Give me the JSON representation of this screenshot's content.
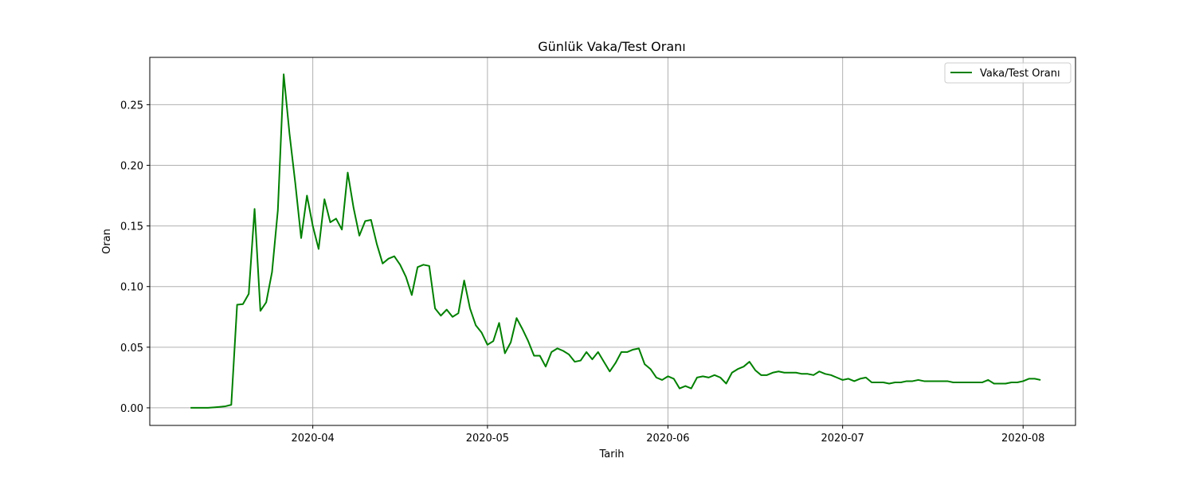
{
  "chart_data": {
    "type": "line",
    "title": "Günlük Vaka/Test Oranı",
    "xlabel": "Tarih",
    "ylabel": "Oran",
    "legend_position": "top-right",
    "grid": true,
    "ylim": [
      -0.0145,
      0.289
    ],
    "xlim": [
      "2020-03-04",
      "2020-08-10"
    ],
    "x_ticks": [
      "2020-04-01",
      "2020-05-01",
      "2020-06-01",
      "2020-07-01",
      "2020-08-01"
    ],
    "x_tick_labels": [
      "2020-04",
      "2020-05",
      "2020-06",
      "2020-07",
      "2020-08"
    ],
    "y_ticks": [
      0,
      0.05,
      0.1,
      0.15,
      0.2,
      0.25
    ],
    "y_tick_labels": [
      "0.00",
      "0.05",
      "0.10",
      "0.15",
      "0.20",
      "0.25"
    ],
    "series": [
      {
        "name": "Vaka/Test Oranı",
        "color": "#008000",
        "x": [
          "2020-03-11",
          "2020-03-12",
          "2020-03-13",
          "2020-03-14",
          "2020-03-15",
          "2020-03-16",
          "2020-03-17",
          "2020-03-18",
          "2020-03-19",
          "2020-03-20",
          "2020-03-21",
          "2020-03-22",
          "2020-03-23",
          "2020-03-24",
          "2020-03-25",
          "2020-03-26",
          "2020-03-27",
          "2020-03-28",
          "2020-03-29",
          "2020-03-30",
          "2020-03-31",
          "2020-04-01",
          "2020-04-02",
          "2020-04-03",
          "2020-04-04",
          "2020-04-05",
          "2020-04-06",
          "2020-04-07",
          "2020-04-08",
          "2020-04-09",
          "2020-04-10",
          "2020-04-11",
          "2020-04-12",
          "2020-04-13",
          "2020-04-14",
          "2020-04-15",
          "2020-04-16",
          "2020-04-17",
          "2020-04-18",
          "2020-04-19",
          "2020-04-20",
          "2020-04-21",
          "2020-04-22",
          "2020-04-23",
          "2020-04-24",
          "2020-04-25",
          "2020-04-26",
          "2020-04-27",
          "2020-04-28",
          "2020-04-29",
          "2020-04-30",
          "2020-05-01",
          "2020-05-02",
          "2020-05-03",
          "2020-05-04",
          "2020-05-05",
          "2020-05-06",
          "2020-05-07",
          "2020-05-08",
          "2020-05-09",
          "2020-05-10",
          "2020-05-11",
          "2020-05-12",
          "2020-05-13",
          "2020-05-14",
          "2020-05-15",
          "2020-05-16",
          "2020-05-17",
          "2020-05-18",
          "2020-05-19",
          "2020-05-20",
          "2020-05-21",
          "2020-05-22",
          "2020-05-23",
          "2020-05-24",
          "2020-05-25",
          "2020-05-26",
          "2020-05-27",
          "2020-05-28",
          "2020-05-29",
          "2020-05-30",
          "2020-05-31",
          "2020-06-01",
          "2020-06-02",
          "2020-06-03",
          "2020-06-04",
          "2020-06-05",
          "2020-06-06",
          "2020-06-07",
          "2020-06-08",
          "2020-06-09",
          "2020-06-10",
          "2020-06-11",
          "2020-06-12",
          "2020-06-13",
          "2020-06-14",
          "2020-06-15",
          "2020-06-16",
          "2020-06-17",
          "2020-06-18",
          "2020-06-19",
          "2020-06-20",
          "2020-06-21",
          "2020-06-22",
          "2020-06-23",
          "2020-06-24",
          "2020-06-25",
          "2020-06-26",
          "2020-06-27",
          "2020-06-28",
          "2020-06-29",
          "2020-06-30",
          "2020-07-01",
          "2020-07-02",
          "2020-07-03",
          "2020-07-04",
          "2020-07-05",
          "2020-07-06",
          "2020-07-07",
          "2020-07-08",
          "2020-07-09",
          "2020-07-10",
          "2020-07-11",
          "2020-07-12",
          "2020-07-13",
          "2020-07-14",
          "2020-07-15",
          "2020-07-16",
          "2020-07-17",
          "2020-07-18",
          "2020-07-19",
          "2020-07-20",
          "2020-07-21",
          "2020-07-22",
          "2020-07-23",
          "2020-07-24",
          "2020-07-25",
          "2020-07-26",
          "2020-07-27",
          "2020-07-28",
          "2020-07-29",
          "2020-07-30",
          "2020-07-31",
          "2020-08-01",
          "2020-08-02",
          "2020-08-03",
          "2020-08-04"
        ],
        "y": [
          0.0,
          0.0,
          0.0,
          0.0,
          0.0004,
          0.0008,
          0.0013,
          0.0025,
          0.085,
          0.0855,
          0.094,
          0.164,
          0.08,
          0.087,
          0.112,
          0.163,
          0.275,
          0.226,
          0.185,
          0.14,
          0.175,
          0.15,
          0.131,
          0.172,
          0.153,
          0.156,
          0.147,
          0.194,
          0.165,
          0.142,
          0.154,
          0.155,
          0.135,
          0.119,
          0.123,
          0.125,
          0.118,
          0.108,
          0.093,
          0.116,
          0.118,
          0.117,
          0.082,
          0.076,
          0.081,
          0.075,
          0.078,
          0.105,
          0.082,
          0.068,
          0.062,
          0.052,
          0.055,
          0.07,
          0.045,
          0.054,
          0.074,
          0.065,
          0.055,
          0.043,
          0.043,
          0.034,
          0.046,
          0.049,
          0.047,
          0.044,
          0.038,
          0.039,
          0.046,
          0.04,
          0.046,
          0.038,
          0.03,
          0.037,
          0.046,
          0.046,
          0.048,
          0.049,
          0.036,
          0.032,
          0.025,
          0.023,
          0.026,
          0.024,
          0.016,
          0.018,
          0.016,
          0.025,
          0.026,
          0.025,
          0.027,
          0.025,
          0.02,
          0.029,
          0.032,
          0.034,
          0.038,
          0.031,
          0.027,
          0.027,
          0.029,
          0.03,
          0.029,
          0.029,
          0.029,
          0.028,
          0.028,
          0.027,
          0.03,
          0.028,
          0.027,
          0.025,
          0.023,
          0.024,
          0.022,
          0.024,
          0.025,
          0.021,
          0.021,
          0.021,
          0.02,
          0.021,
          0.021,
          0.022,
          0.022,
          0.023,
          0.022,
          0.022,
          0.022,
          0.022,
          0.022,
          0.021,
          0.021,
          0.021,
          0.021,
          0.021,
          0.021,
          0.023,
          0.02,
          0.02,
          0.02,
          0.021,
          0.021,
          0.022,
          0.024,
          0.024,
          0.023
        ]
      }
    ]
  }
}
